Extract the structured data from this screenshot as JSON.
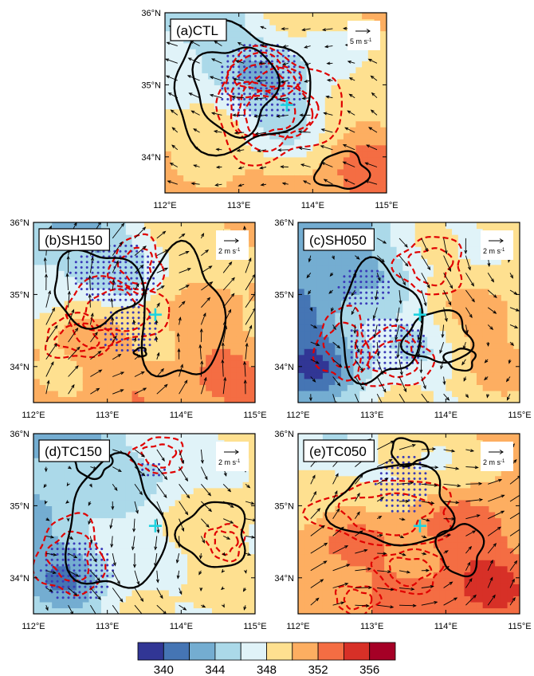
{
  "chart_data": [
    {
      "type": "heatmap",
      "title": "(a)CTL",
      "reference_vector_label": "5 m s",
      "reference_vector_unit_exp": "-1",
      "storm_center": [
        113.65,
        34.72
      ],
      "xlim": [
        112,
        115
      ],
      "ylim": [
        33.5,
        36
      ],
      "xticks": [
        112,
        113,
        114,
        115
      ],
      "xtick_labels": [
        "112°E",
        "113°E",
        "114°E",
        "115°E"
      ],
      "yticks": [
        34,
        35,
        36
      ],
      "ytick_labels": [
        "34°N",
        "35°N",
        "36°N"
      ],
      "xlabel": "",
      "ylabel": "",
      "field_base": 351,
      "field_features": [
        [
          113.7,
          34.8,
          -6,
          0.7
        ],
        [
          112.3,
          35.8,
          -5,
          0.7
        ],
        [
          114.6,
          33.9,
          3,
          0.8
        ],
        [
          112.2,
          33.8,
          1,
          0.6
        ]
      ],
      "solid_contours": [
        [
          112.95,
          34.95,
          0.55,
          0.6
        ],
        [
          113.0,
          34.95,
          0.92,
          0.85
        ],
        [
          114.4,
          33.8,
          0.35,
          0.25
        ]
      ],
      "dashed_contours": [
        [
          113.4,
          34.6,
          0.55,
          0.45
        ],
        [
          113.5,
          34.7,
          0.85,
          0.75
        ],
        [
          113.3,
          35.1,
          0.5,
          0.3
        ]
      ],
      "stipple_regions": [
        [
          113.3,
          35.05,
          0.6,
          0.55
        ]
      ],
      "wind_u": -3.0,
      "wind_v": 0.6
    },
    {
      "type": "heatmap",
      "title": "(b)SH150",
      "reference_vector_label": "2 m s",
      "reference_vector_unit_exp": "-1",
      "storm_center": [
        113.65,
        34.72
      ],
      "xlim": [
        112,
        115
      ],
      "ylim": [
        33.5,
        36
      ],
      "xticks": [
        112,
        113,
        114,
        115
      ],
      "xtick_labels": [
        "112°E",
        "113°E",
        "114°E",
        "115°E"
      ],
      "yticks": [
        34,
        35,
        36
      ],
      "ytick_labels": [
        "34°N",
        "35°N",
        "36°N"
      ],
      "xlabel": "",
      "ylabel": "",
      "field_base": 351,
      "field_features": [
        [
          112.3,
          35.8,
          -6,
          0.7
        ],
        [
          113.4,
          35.5,
          -3,
          0.5
        ],
        [
          112.5,
          34.2,
          1,
          0.6
        ],
        [
          114.5,
          33.7,
          2,
          0.7
        ]
      ],
      "solid_contours": [
        [
          112.85,
          35.1,
          0.6,
          0.5
        ],
        [
          114.0,
          34.7,
          0.55,
          0.9
        ],
        [
          113.45,
          34.2,
          0.08,
          0.06
        ]
      ],
      "dashed_contours": [
        [
          113.1,
          34.75,
          0.7,
          0.45
        ],
        [
          112.6,
          34.4,
          0.45,
          0.3
        ],
        [
          113.4,
          35.4,
          0.35,
          0.4
        ]
      ],
      "stipple_regions": [
        [
          113.1,
          35.3,
          0.6,
          0.45
        ],
        [
          113.3,
          34.5,
          0.4,
          0.35
        ]
      ],
      "wind_u": 1.0,
      "wind_v": 2.0
    },
    {
      "type": "heatmap",
      "title": "(c)SH050",
      "reference_vector_label": "2 m s",
      "reference_vector_unit_exp": "-1",
      "storm_center": [
        113.65,
        34.72
      ],
      "xlim": [
        112,
        115
      ],
      "ylim": [
        33.5,
        36
      ],
      "xticks": [
        112,
        113,
        114,
        115
      ],
      "xtick_labels": [
        "112°E",
        "113°E",
        "114°E",
        "115°E"
      ],
      "yticks": [
        34,
        35,
        36
      ],
      "ytick_labels": [
        "34°N",
        "35°N",
        "36°N"
      ],
      "xlabel": "",
      "ylabel": "",
      "field_base": 349,
      "field_features": [
        [
          112.2,
          35.6,
          -6,
          0.8
        ],
        [
          112.1,
          34.0,
          -7,
          0.5
        ],
        [
          114.6,
          34.5,
          3,
          0.7
        ],
        [
          113.7,
          34.3,
          -2,
          0.5
        ]
      ],
      "solid_contours": [
        [
          113.1,
          34.6,
          0.55,
          0.8
        ],
        [
          113.9,
          34.4,
          0.45,
          0.35
        ],
        [
          114.2,
          34.1,
          0.2,
          0.15
        ]
      ],
      "dashed_contours": [
        [
          113.3,
          34.1,
          0.5,
          0.4
        ],
        [
          112.6,
          34.3,
          0.35,
          0.5
        ],
        [
          113.8,
          35.4,
          0.45,
          0.4
        ]
      ],
      "stipple_regions": [
        [
          113.2,
          34.3,
          0.55,
          0.4
        ],
        [
          112.9,
          35.1,
          0.35,
          0.3
        ]
      ],
      "wind_u": 0.5,
      "wind_v": -1.8
    },
    {
      "type": "heatmap",
      "title": "(d)TC150",
      "reference_vector_label": "2 m s",
      "reference_vector_unit_exp": "-1",
      "storm_center": [
        113.65,
        34.72
      ],
      "xlim": [
        112,
        115
      ],
      "ylim": [
        33.5,
        36
      ],
      "xticks": [
        112,
        113,
        114,
        115
      ],
      "xtick_labels": [
        "112°E",
        "113°E",
        "114°E",
        "115°E"
      ],
      "yticks": [
        34,
        35,
        36
      ],
      "ytick_labels": [
        "34°N",
        "35°N",
        "36°N"
      ],
      "xlabel": "",
      "ylabel": "",
      "field_base": 349,
      "field_features": [
        [
          112.2,
          35.8,
          -5,
          0.8
        ],
        [
          112.4,
          34.0,
          -5,
          0.5
        ],
        [
          114.6,
          34.7,
          1,
          0.8
        ],
        [
          113.7,
          35.5,
          -2,
          0.4
        ]
      ],
      "solid_contours": [
        [
          113.1,
          34.7,
          0.65,
          0.9
        ],
        [
          114.45,
          34.6,
          0.45,
          0.45
        ],
        [
          112.8,
          35.6,
          0.25,
          0.2
        ]
      ],
      "dashed_contours": [
        [
          112.5,
          34.3,
          0.45,
          0.55
        ],
        [
          113.7,
          35.7,
          0.35,
          0.25
        ],
        [
          114.6,
          34.5,
          0.25,
          0.25
        ]
      ],
      "stipple_regions": [
        [
          112.6,
          34.1,
          0.5,
          0.45
        ],
        [
          113.6,
          35.5,
          0.2,
          0.15
        ]
      ],
      "wind_u": 0.8,
      "wind_v": -1.5
    },
    {
      "type": "heatmap",
      "title": "(e)TC050",
      "reference_vector_label": "2 m s",
      "reference_vector_unit_exp": "-1",
      "storm_center": [
        113.65,
        34.72
      ],
      "xlim": [
        112,
        115
      ],
      "ylim": [
        33.5,
        36
      ],
      "xticks": [
        112,
        113,
        114,
        115
      ],
      "xtick_labels": [
        "112°E",
        "113°E",
        "114°E",
        "115°E"
      ],
      "yticks": [
        34,
        35,
        36
      ],
      "ytick_labels": [
        "34°N",
        "35°N",
        "36°N"
      ],
      "xlabel": "",
      "ylabel": "",
      "field_base": 352,
      "field_features": [
        [
          112.3,
          35.8,
          -5,
          0.6
        ],
        [
          113.8,
          35.7,
          -4,
          0.4
        ],
        [
          114.4,
          33.9,
          3,
          0.7
        ],
        [
          112.4,
          34.4,
          1,
          0.5
        ]
      ],
      "solid_contours": [
        [
          113.3,
          35.0,
          0.8,
          0.55
        ],
        [
          114.2,
          34.4,
          0.3,
          0.35
        ],
        [
          113.5,
          35.75,
          0.25,
          0.18
        ]
      ],
      "dashed_contours": [
        [
          113.2,
          34.9,
          0.95,
          0.45
        ],
        [
          113.5,
          34.1,
          0.45,
          0.3
        ],
        [
          112.8,
          33.7,
          0.3,
          0.2
        ]
      ],
      "stipple_regions": [
        [
          113.4,
          35.3,
          0.35,
          0.45
        ]
      ],
      "wind_u": 2.0,
      "wind_v": 0.8
    }
  ],
  "colorbar": {
    "tick_labels": [
      "340",
      "344",
      "348",
      "352",
      "356"
    ],
    "levels": [
      339,
      341,
      343,
      345,
      347,
      349,
      351,
      353,
      355,
      357
    ],
    "colors": [
      "#313695",
      "#4575b4",
      "#74add1",
      "#abd9e9",
      "#e0f3f8",
      "#fee090",
      "#fdae61",
      "#f46d43",
      "#d73027",
      "#a50026"
    ]
  },
  "colors": {
    "contour_solid": "#000000",
    "contour_dashed": "#e00000",
    "stipple": "#3a3ab8",
    "storm_marker": "#1fd3e0",
    "wind_vector": "#000000"
  }
}
